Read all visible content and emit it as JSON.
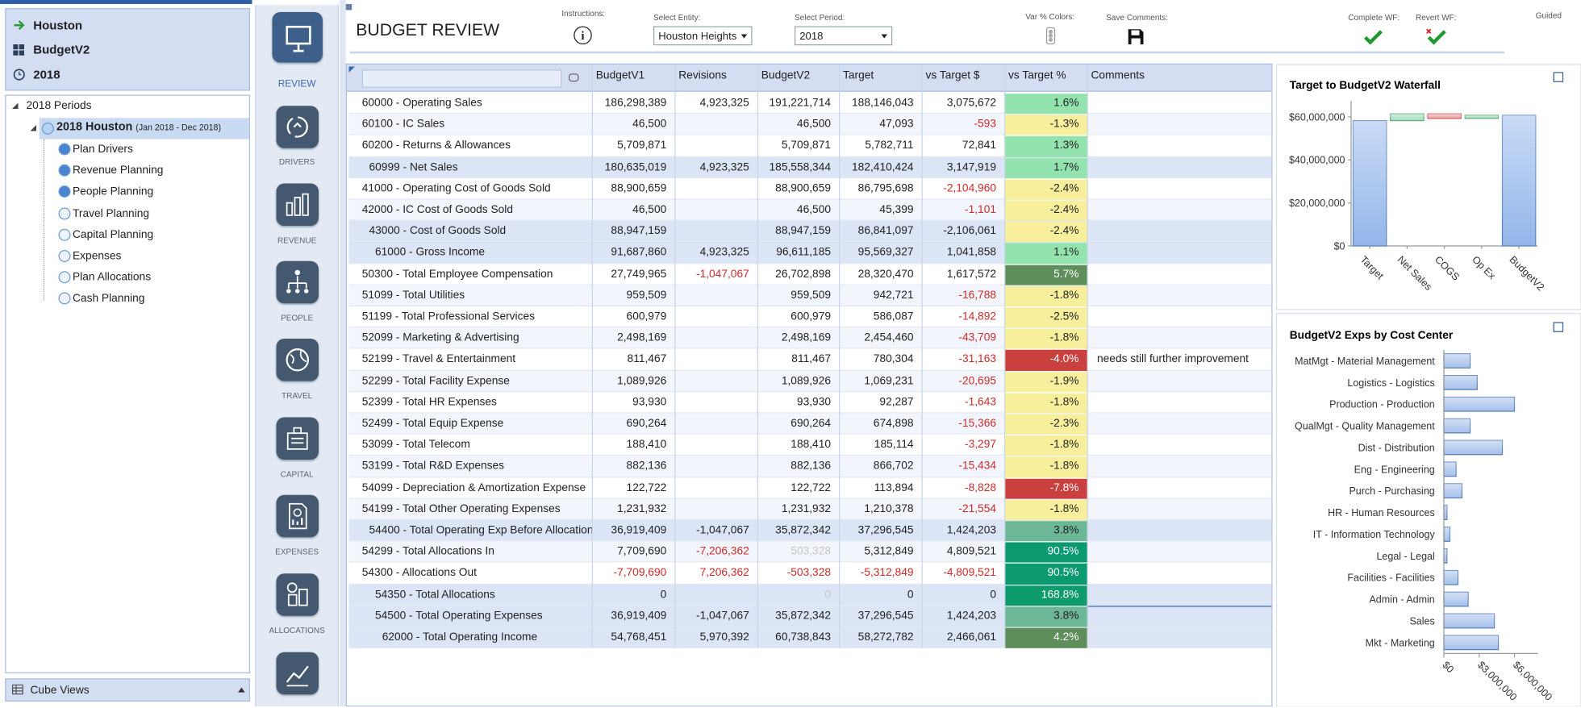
{
  "sidebar": {
    "pov": [
      "Houston",
      "BudgetV2",
      "2018"
    ],
    "tree_root": "2018 Periods",
    "tree_node": "2018 Houston",
    "tree_node_range": "(Jan 2018 - Dec 2018)",
    "tree_items": [
      "Plan Drivers",
      "Revenue Planning",
      "People Planning",
      "Travel Planning",
      "Capital Planning",
      "Expenses",
      "Plan Allocations",
      "Cash Planning"
    ],
    "footer": "Cube Views"
  },
  "nav": [
    "REVIEW",
    "DRIVERS",
    "REVENUE",
    "PEOPLE",
    "TRAVEL",
    "CAPITAL",
    "EXPENSES",
    "ALLOCATIONS"
  ],
  "toolbar": {
    "title": "BUDGET REVIEW",
    "instructions": "Instructions:",
    "entity_label": "Select Entity:",
    "entity": "Houston Heights",
    "period_label": "Select Period:",
    "period": "2018",
    "var_colors": "Var % Colors:",
    "save": "Save Comments:",
    "complete": "Complete WF:",
    "revert": "Revert WF:",
    "guided": "Guided"
  },
  "table": {
    "columns": [
      "BudgetV1",
      "Revisions",
      "BudgetV2",
      "Target",
      "vs Target $",
      "vs Target %",
      "Comments"
    ],
    "rows": [
      [
        "60000 - Operating Sales",
        "186,298,389",
        "4,923,325",
        "191,221,714",
        "188,146,043",
        "3,075,672",
        "1.6%",
        null
      ],
      [
        "60100 - IC Sales",
        "46,500",
        null,
        "46,500",
        "47,093",
        "-593",
        "-1.3%",
        null
      ],
      [
        "60200 - Returns & Allowances",
        "5,709,871",
        null,
        "5,709,871",
        "5,782,711",
        "72,841",
        "1.3%",
        null
      ],
      [
        "60999 - Net Sales",
        "180,635,019",
        "4,923,325",
        "185,558,344",
        "182,410,424",
        "3,147,919",
        "1.7%",
        null
      ],
      [
        "41000 - Operating Cost of Goods Sold",
        "88,900,659",
        null,
        "88,900,659",
        "86,795,698",
        "-2,104,960",
        "-2.4%",
        null
      ],
      [
        "42000 - IC Cost of Goods Sold",
        "46,500",
        null,
        "46,500",
        "45,399",
        "-1,101",
        "-2.4%",
        null
      ],
      [
        "43000 - Cost of Goods Sold",
        "88,947,159",
        null,
        "88,947,159",
        "86,841,097",
        "-2,106,061",
        "-2.4%",
        null
      ],
      [
        "61000 - Gross Income",
        "91,687,860",
        "4,923,325",
        "96,611,185",
        "95,569,327",
        "1,041,858",
        "1.1%",
        null
      ],
      [
        "50300 - Total Employee Compensation",
        "27,749,965",
        "-1,047,067",
        "26,702,898",
        "28,320,470",
        "1,617,572",
        "5.7%",
        null
      ],
      [
        "51099 - Total Utilities",
        "959,509",
        null,
        "959,509",
        "942,721",
        "-16,788",
        "-1.8%",
        null
      ],
      [
        "51199 - Total Professional Services",
        "600,979",
        null,
        "600,979",
        "586,087",
        "-14,892",
        "-2.5%",
        null
      ],
      [
        "52099 - Marketing & Advertising",
        "2,498,169",
        null,
        "2,498,169",
        "2,454,460",
        "-43,709",
        "-1.8%",
        null
      ],
      [
        "52199 - Travel & Entertainment",
        "811,467",
        null,
        "811,467",
        "780,304",
        "-31,163",
        "-4.0%",
        "needs still further improvement"
      ],
      [
        "52299 - Total Facility Expense",
        "1,089,926",
        null,
        "1,089,926",
        "1,069,231",
        "-20,695",
        "-1.9%",
        null
      ],
      [
        "52399 - Total HR Expenses",
        "93,930",
        null,
        "93,930",
        "92,287",
        "-1,643",
        "-1.8%",
        null
      ],
      [
        "52499 - Total Equip Expense",
        "690,264",
        null,
        "690,264",
        "674,898",
        "-15,366",
        "-2.3%",
        null
      ],
      [
        "53099 - Total Telecom",
        "188,410",
        null,
        "188,410",
        "185,114",
        "-3,297",
        "-1.8%",
        null
      ],
      [
        "53199 - Total R&D Expenses",
        "882,136",
        null,
        "882,136",
        "866,702",
        "-15,434",
        "-1.8%",
        null
      ],
      [
        "54099 - Depreciation & Amortization Expense",
        "122,722",
        null,
        "122,722",
        "113,894",
        "-8,828",
        "-7.8%",
        null
      ],
      [
        "54199 - Total Other Operating Expenses",
        "1,231,932",
        null,
        "1,231,932",
        "1,210,378",
        "-21,554",
        "-1.8%",
        null
      ],
      [
        "54400 - Total Operating Exp Before Allocation",
        "36,919,409",
        "-1,047,067",
        "35,872,342",
        "37,296,545",
        "1,424,203",
        "3.8%",
        null
      ],
      [
        "54299 - Total Allocations In",
        "7,709,690",
        "-7,206,362",
        "503,328",
        "5,312,849",
        "4,809,521",
        "90.5%",
        null
      ],
      [
        "54300 - Allocations Out",
        "-7,709,690",
        "7,206,362",
        "-503,328",
        "-5,312,849",
        "-4,809,521",
        "90.5%",
        null
      ],
      [
        "54350 - Total Allocations",
        "0",
        null,
        "0",
        "0",
        "0",
        "168.8%",
        null
      ],
      [
        "54500 - Total Operating Expenses",
        "36,919,409",
        "-1,047,067",
        "35,872,342",
        "37,296,545",
        "1,424,203",
        "3.8%",
        null
      ],
      [
        "62000 - Total Operating Income",
        "54,768,451",
        "5,970,392",
        "60,738,843",
        "58,272,782",
        "2,466,061",
        "4.2%",
        null
      ]
    ],
    "pct_colors": [
      "#92e3ad",
      "#f7ef9c",
      "#92e3ad",
      "#92e3ad",
      "#f7ef9c",
      "#f7ef9c",
      "#f7ef9c",
      "#92e3ad",
      "#5e8f5b",
      "#f7ef9c",
      "#f7ef9c",
      "#f7ef9c",
      "#c9403e",
      "#f7ef9c",
      "#f7ef9c",
      "#f7ef9c",
      "#f7ef9c",
      "#f7ef9c",
      "#c9403e",
      "#f7ef9c",
      "#6cb896",
      "#0b9a70",
      "#0b9a70",
      "#0d9b6c",
      "#6cb896",
      "#5e8f5b"
    ]
  },
  "chart_data": [
    {
      "type": "waterfall",
      "title": "Target to BudgetV2 Waterfall",
      "categories": [
        "Target",
        "Net Sales",
        "COGS",
        "Op Ex",
        "BudgetV2"
      ],
      "values": [
        58272782,
        3147919,
        -2106061,
        1424203,
        60738843
      ],
      "colors": {
        "total": "#93b6ea",
        "increase": "#a6dcbc",
        "decrease": "#f0a3a3"
      },
      "ylim": [
        0,
        67500000
      ],
      "yticks": [
        {
          "value": 0,
          "label": "$0"
        },
        {
          "value": 20000000,
          "label": "$20,000,000"
        },
        {
          "value": 40000000,
          "label": "$40,000,000"
        },
        {
          "value": 60000000,
          "label": "$60,000,000"
        }
      ]
    },
    {
      "type": "bar",
      "orientation": "horizontal",
      "title": "BudgetV2 Exps by Cost Center",
      "categories": [
        "MatMgt - Material Management",
        "Logistics - Logistics",
        "Production - Production",
        "QualMgt - Quality Management",
        "Dist - Distribution",
        "Eng - Engineering",
        "Purch - Purchasing",
        "HR - Human Resources",
        "IT - Information Technology",
        "Legal - Legal",
        "Facilities - Facilities",
        "Admin - Admin",
        "Sales",
        "Mkt - Marketing"
      ],
      "values": [
        2230000,
        2830000,
        6000000,
        2230000,
        4970000,
        1030000,
        1540000,
        260000,
        510000,
        260000,
        1200000,
        2060000,
        4290000,
        4630000
      ],
      "color": "#a5c1ea",
      "xlim": [
        0,
        8000000
      ],
      "xticks": [
        {
          "value": 0,
          "label": "$0"
        },
        {
          "value": 3000000,
          "label": "$3,000,000"
        },
        {
          "value": 6000000,
          "label": "$6,000,000"
        }
      ]
    }
  ]
}
